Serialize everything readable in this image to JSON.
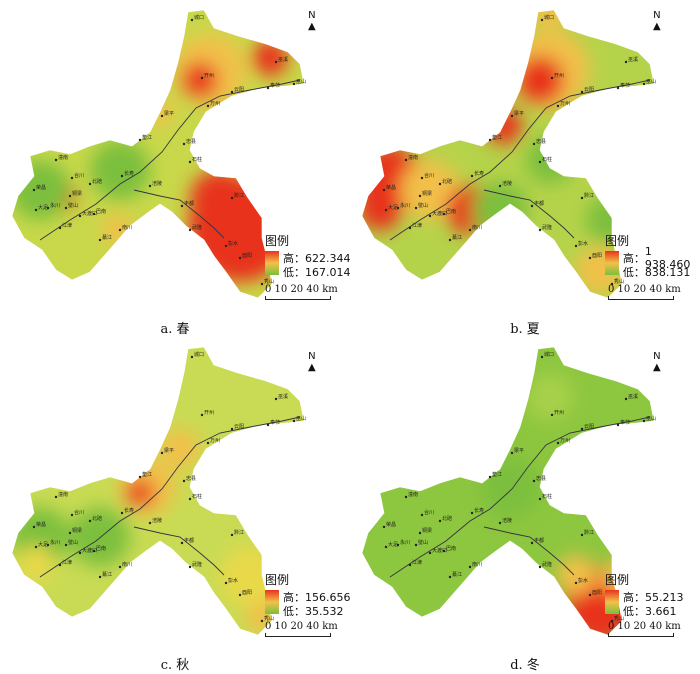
{
  "legend_title": "图例",
  "high_prefix": "高：",
  "low_prefix": "低：",
  "north_label": "N",
  "scale_label": "0 10 20   40 km",
  "colors": {
    "high": "#e8331f",
    "mid": "#f2c04a",
    "low": "#7bbf3d"
  },
  "panels": [
    {
      "caption": "a.  春",
      "high": "622.344",
      "low": "167.014"
    },
    {
      "caption": "b.  夏",
      "high": "1 938.460",
      "low": "838.131"
    },
    {
      "caption": "c.  秋",
      "high": "156.656",
      "low": "35.532"
    },
    {
      "caption": "d.  冬",
      "high": "55.213",
      "low": "3.661"
    }
  ],
  "cities": [
    "城口",
    "巫溪",
    "开州",
    "云阳",
    "奉节",
    "巫山",
    "万州",
    "梁平",
    "垫江",
    "忠县",
    "石柱",
    "潼南",
    "合川",
    "北碚",
    "长寿",
    "涪陵",
    "丰都",
    "永川",
    "荣昌",
    "大足",
    "铜梁",
    "璧山",
    "江津",
    "巴南",
    "大渡口",
    "綦江",
    "南川",
    "武隆",
    "彭水",
    "黔江",
    "酉阳",
    "秀山"
  ]
}
